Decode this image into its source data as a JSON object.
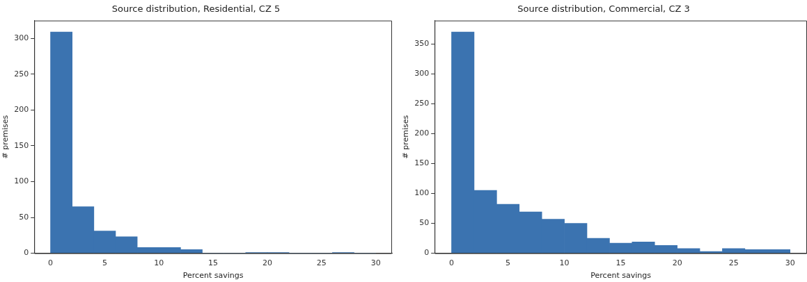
{
  "chart_data": [
    {
      "type": "histogram",
      "title": "Source distribution, Residential, CZ 5",
      "xlabel": "Percent savings",
      "ylabel": "# premises",
      "color": "#3b73b0",
      "bins": [
        0,
        2,
        4,
        6,
        8,
        10,
        12,
        14,
        16,
        18,
        20,
        22,
        24,
        26,
        28,
        30
      ],
      "values": [
        309,
        65,
        31,
        23,
        8,
        8,
        5,
        0,
        0,
        1,
        1,
        0,
        0,
        1,
        0
      ],
      "xlim": [
        -1.5,
        31.5
      ],
      "xticks": [
        0,
        5,
        10,
        15,
        20,
        25,
        30
      ],
      "ylim": [
        0,
        325
      ],
      "yticks": [
        0,
        50,
        100,
        150,
        200,
        250,
        300
      ],
      "grid": false,
      "legend": false
    },
    {
      "type": "histogram",
      "title": "Source distribution, Commercial, CZ 3",
      "xlabel": "Percent savings",
      "ylabel": "# premises",
      "color": "#3b73b0",
      "bins": [
        0,
        2,
        4,
        6,
        8,
        10,
        12,
        14,
        16,
        18,
        20,
        22,
        24,
        26,
        28,
        30
      ],
      "values": [
        370,
        105,
        82,
        69,
        57,
        50,
        25,
        17,
        19,
        13,
        8,
        3,
        8,
        6,
        6
      ],
      "xlim": [
        -1.5,
        31.5
      ],
      "xticks": [
        0,
        5,
        10,
        15,
        20,
        25,
        30
      ],
      "ylim": [
        0,
        389
      ],
      "yticks": [
        0,
        50,
        100,
        150,
        200,
        250,
        300,
        350
      ],
      "grid": false,
      "legend": false
    }
  ]
}
